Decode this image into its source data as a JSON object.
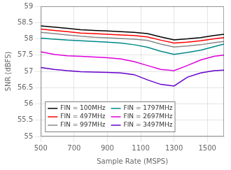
{
  "chart_data": {
    "type": "line",
    "xlabel": "Sample Rate (MSPS)",
    "ylabel": "SNR (dBFS)",
    "xlim": [
      500,
      1600
    ],
    "ylim": [
      55,
      59
    ],
    "xticks": [
      500,
      700,
      900,
      1100,
      1300,
      1500
    ],
    "yticks": [
      55,
      55.5,
      56,
      56.5,
      57,
      57.5,
      58,
      58.5,
      59
    ],
    "x": [
      500,
      580,
      660,
      740,
      820,
      900,
      980,
      1060,
      1140,
      1220,
      1300,
      1380,
      1460,
      1540,
      1600
    ],
    "series": [
      {
        "name": "FIN = 100MHz",
        "color": "#000000",
        "values": [
          58.4,
          58.36,
          58.32,
          58.28,
          58.26,
          58.24,
          58.22,
          58.2,
          58.16,
          58.06,
          57.97,
          58.0,
          58.04,
          58.1,
          58.14
        ]
      },
      {
        "name": "FIN = 497MHz",
        "color": "#ff0000",
        "values": [
          58.3,
          58.26,
          58.22,
          58.18,
          58.16,
          58.14,
          58.12,
          58.1,
          58.06,
          57.96,
          57.87,
          57.9,
          57.94,
          58.0,
          58.04
        ]
      },
      {
        "name": "FIN = 997MHz",
        "color": "#888888",
        "values": [
          58.2,
          58.16,
          58.12,
          58.08,
          58.05,
          58.03,
          58.01,
          57.99,
          57.95,
          57.84,
          57.75,
          57.78,
          57.82,
          57.88,
          57.92
        ]
      },
      {
        "name": "FIN = 1797MHz",
        "color": "#008888",
        "values": [
          58.02,
          57.99,
          57.96,
          57.94,
          57.92,
          57.9,
          57.87,
          57.82,
          57.74,
          57.62,
          57.52,
          57.58,
          57.65,
          57.76,
          57.84
        ]
      },
      {
        "name": "FIN = 2697MHz",
        "color": "#dd00dd",
        "values": [
          57.6,
          57.52,
          57.48,
          57.46,
          57.44,
          57.42,
          57.38,
          57.3,
          57.18,
          57.06,
          57.02,
          57.18,
          57.35,
          57.46,
          57.5
        ]
      },
      {
        "name": "FIN = 3497MHz",
        "color": "#6600cc",
        "values": [
          57.12,
          57.06,
          57.02,
          56.99,
          56.98,
          56.97,
          56.95,
          56.9,
          56.74,
          56.6,
          56.55,
          56.82,
          56.95,
          57.02,
          57.04
        ]
      }
    ],
    "grid": true,
    "legend": "lower left"
  }
}
